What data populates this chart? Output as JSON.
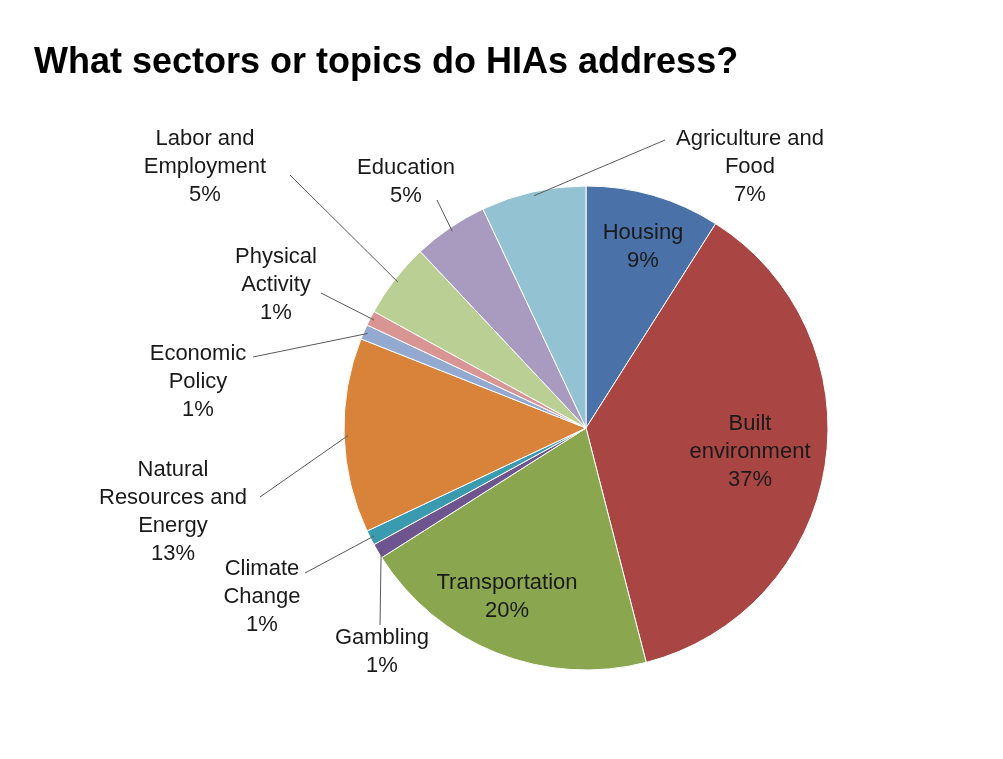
{
  "chart_data": {
    "type": "pie",
    "title": "What sectors or topics do HIAs address?",
    "categories": [
      "Housing",
      "Built environment",
      "Transportation",
      "Gambling",
      "Climate Change",
      "Natural Resources and Energy",
      "Economic Policy",
      "Physical Activity",
      "Labor and Employment",
      "Education",
      "Agriculture and Food"
    ],
    "values": [
      9,
      37,
      20,
      1,
      1,
      13,
      1,
      1,
      5,
      5,
      7
    ],
    "value_labels": [
      "9%",
      "37%",
      "20%",
      "1%",
      "1%",
      "13%",
      "1%",
      "1%",
      "5%",
      "5%",
      "7%"
    ],
    "colors": [
      "#4a72a8",
      "#a94644",
      "#8aa64f",
      "#6f5590",
      "#3a9bb0",
      "#d9823a",
      "#93a9cf",
      "#d99594",
      "#b9cf94",
      "#a89bbf",
      "#93c3d2"
    ]
  }
}
